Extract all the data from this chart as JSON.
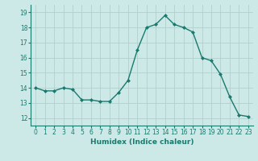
{
  "x": [
    0,
    1,
    2,
    3,
    4,
    5,
    6,
    7,
    8,
    9,
    10,
    11,
    12,
    13,
    14,
    15,
    16,
    17,
    18,
    19,
    20,
    21,
    22,
    23
  ],
  "y": [
    14.0,
    13.8,
    13.8,
    14.0,
    13.9,
    13.2,
    13.2,
    13.1,
    13.1,
    13.7,
    14.5,
    16.5,
    18.0,
    18.2,
    18.8,
    18.2,
    18.0,
    17.7,
    16.0,
    15.8,
    14.9,
    13.4,
    12.2,
    12.1
  ],
  "line_color": "#1a7a6e",
  "marker": "D",
  "marker_size": 2.0,
  "bg_color": "#cce9e7",
  "grid_color": "#b0cfcd",
  "xlabel": "Humidex (Indice chaleur)",
  "xlim": [
    -0.5,
    23.5
  ],
  "ylim": [
    11.5,
    19.5
  ],
  "yticks": [
    12,
    13,
    14,
    15,
    16,
    17,
    18,
    19
  ],
  "xticks": [
    0,
    1,
    2,
    3,
    4,
    5,
    6,
    7,
    8,
    9,
    10,
    11,
    12,
    13,
    14,
    15,
    16,
    17,
    18,
    19,
    20,
    21,
    22,
    23
  ],
  "xtick_labels": [
    "0",
    "1",
    "2",
    "3",
    "4",
    "5",
    "6",
    "7",
    "8",
    "9",
    "10",
    "11",
    "12",
    "13",
    "14",
    "15",
    "16",
    "17",
    "18",
    "19",
    "20",
    "21",
    "22",
    "23"
  ],
  "tick_color": "#1a7a6e",
  "label_fontsize": 6.5,
  "tick_fontsize": 5.5
}
